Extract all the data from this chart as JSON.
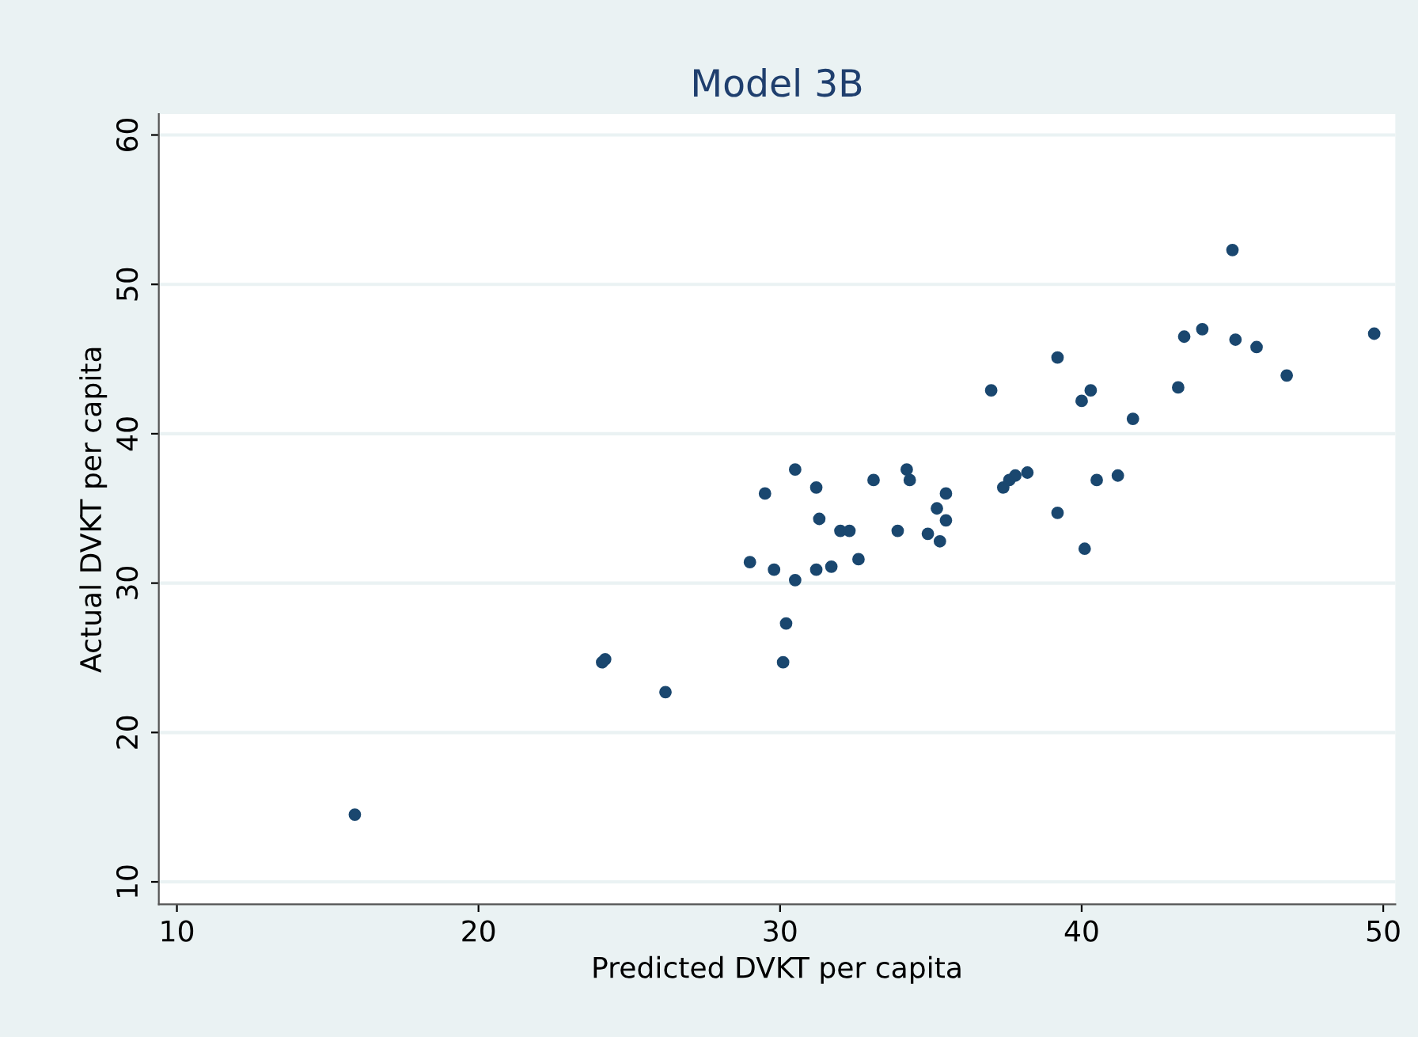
{
  "chart_data": {
    "type": "scatter",
    "title": "Model 3B",
    "xlabel": "Predicted DVKT per capita",
    "ylabel": "Actual DVKT per capita",
    "x": [
      15.9,
      24.1,
      24.2,
      26.2,
      30.2,
      30.1,
      29.0,
      29.8,
      30.5,
      31.2,
      31.7,
      32.6,
      29.5,
      30.5,
      31.2,
      31.3,
      32.0,
      32.3,
      33.1,
      33.9,
      34.2,
      34.3,
      34.9,
      35.3,
      35.2,
      35.5,
      35.5,
      37.4,
      37.6,
      37.8,
      38.2,
      39.2,
      40.1,
      40.5,
      41.2,
      45.0,
      37.0,
      39.2,
      40.0,
      40.3,
      41.7,
      43.2,
      43.4,
      44.0,
      45.1,
      45.8,
      46.8,
      49.7
    ],
    "series": [
      {
        "color": "#1a476f",
        "values": [
          14.5,
          24.7,
          24.9,
          22.7,
          27.3,
          24.7,
          31.4,
          30.9,
          30.2,
          30.9,
          31.1,
          31.6,
          36.0,
          37.6,
          36.4,
          34.3,
          33.5,
          33.5,
          36.9,
          33.5,
          37.6,
          36.9,
          33.3,
          32.8,
          35.0,
          36.0,
          34.2,
          36.4,
          36.9,
          37.2,
          37.4,
          34.7,
          32.3,
          36.9,
          37.2,
          52.3,
          42.9,
          45.1,
          42.2,
          42.9,
          41.0,
          43.1,
          46.5,
          47.0,
          46.3,
          45.8,
          43.9,
          46.7
        ]
      }
    ],
    "marker": "circle",
    "grid": "y",
    "legend": false,
    "xlim": [
      9.4,
      50.4
    ],
    "ylim": [
      8.5,
      61.4
    ],
    "xticks": [
      10,
      20,
      30,
      40,
      50
    ],
    "yticks": [
      10,
      20,
      30,
      40,
      50,
      60
    ]
  }
}
